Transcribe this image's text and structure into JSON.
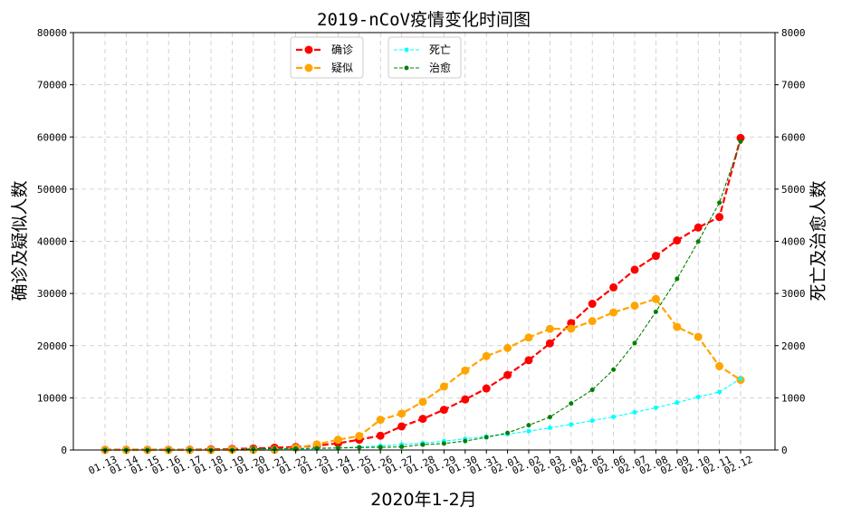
{
  "chart_data": {
    "type": "line",
    "title": "2019-nCoV疫情变化时间图",
    "xlabel": "2020年1-2月",
    "ylabel_left": "确诊及疑似人数",
    "ylabel_right": "死亡及治愈人数",
    "ylim_left": [
      0,
      80000
    ],
    "ylim_right": [
      0,
      8000
    ],
    "yticks_left": [
      0,
      10000,
      20000,
      30000,
      40000,
      50000,
      60000,
      70000,
      80000
    ],
    "yticks_right": [
      0,
      1000,
      2000,
      3000,
      4000,
      5000,
      6000,
      7000,
      8000
    ],
    "grid": true,
    "categories": [
      "01.13",
      "01.14",
      "01.15",
      "01.16",
      "01.17",
      "01.18",
      "01.19",
      "01.20",
      "01.21",
      "01.22",
      "01.23",
      "01.24",
      "01.25",
      "01.26",
      "01.27",
      "01.28",
      "01.29",
      "01.30",
      "01.31",
      "02.01",
      "02.02",
      "02.03",
      "02.04",
      "02.05",
      "02.06",
      "02.07",
      "02.08",
      "02.09",
      "02.10",
      "02.11",
      "02.12"
    ],
    "series": [
      {
        "name": "确诊",
        "axis": "left",
        "color": "#ff0000",
        "marker": "large",
        "values": [
          41,
          41,
          41,
          45,
          62,
          121,
          198,
          291,
          440,
          571,
          830,
          1287,
          1975,
          2744,
          4515,
          5974,
          7711,
          9692,
          11791,
          14380,
          17205,
          20438,
          24324,
          28018,
          31161,
          34546,
          37198,
          40171,
          42638,
          44653,
          59804
        ]
      },
      {
        "name": "疑似",
        "axis": "left",
        "color": "#ffa500",
        "marker": "large",
        "values": [
          0,
          0,
          0,
          0,
          0,
          0,
          54,
          27,
          37,
          393,
          1072,
          1965,
          2684,
          5794,
          6973,
          9239,
          12167,
          15238,
          17988,
          19544,
          21558,
          23214,
          23260,
          24702,
          26359,
          27657,
          28942,
          23589,
          21675,
          16067,
          13435
        ]
      },
      {
        "name": "死亡",
        "axis": "right",
        "color": "#00ffff",
        "marker": "small",
        "values": [
          1,
          1,
          2,
          2,
          2,
          3,
          3,
          6,
          9,
          17,
          25,
          41,
          56,
          80,
          106,
          132,
          170,
          213,
          259,
          304,
          361,
          425,
          490,
          563,
          636,
          722,
          811,
          908,
          1016,
          1113,
          1367
        ]
      },
      {
        "name": "治愈",
        "axis": "right",
        "color": "#008000",
        "marker": "small",
        "values": [
          0,
          0,
          0,
          0,
          0,
          0,
          0,
          25,
          28,
          28,
          34,
          38,
          49,
          51,
          60,
          103,
          124,
          171,
          243,
          328,
          475,
          632,
          892,
          1153,
          1540,
          2050,
          2649,
          3281,
          3996,
          4740,
          5911
        ]
      }
    ],
    "legend_left": "top-center-left",
    "legend_right": "top-center"
  }
}
